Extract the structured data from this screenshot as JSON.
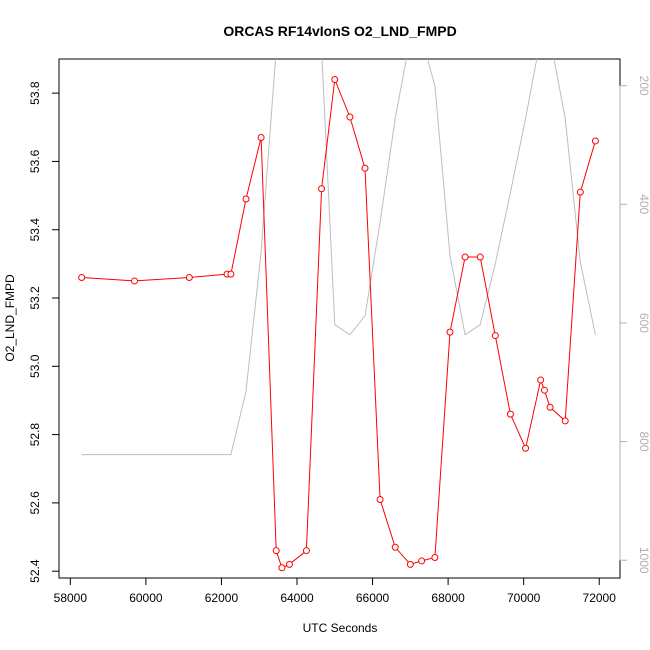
{
  "chart_data": {
    "type": "line",
    "title": "ORCAS RF14vIonS O2_LND_FMPD",
    "xlabel": "UTC Seconds",
    "ylabel": "O2_LND_FMPD",
    "xlim": [
      57700,
      72550
    ],
    "ylim": [
      52.38,
      53.9
    ],
    "x_ticks": [
      58000,
      60000,
      62000,
      64000,
      66000,
      68000,
      70000,
      72000
    ],
    "y_ticks": [
      52.4,
      52.6,
      52.8,
      53.0,
      53.2,
      53.4,
      53.6,
      53.8
    ],
    "y_tick_labels": [
      "52.4",
      "52.6",
      "52.8",
      "53.0",
      "53.2",
      "53.4",
      "53.6",
      "53.8"
    ],
    "y2_lim": [
      1030,
      155
    ],
    "y2_ticks": [
      200,
      400,
      600,
      800,
      1000
    ],
    "grid": false,
    "series": [
      {
        "color": "#ff0000",
        "style": "line+open-circles",
        "axis": "left",
        "x": [
          58300,
          59700,
          61150,
          62150,
          62250,
          62650,
          63050,
          63450,
          63600,
          63800,
          64250,
          64650,
          65000,
          65400,
          65800,
          66200,
          66600,
          67000,
          67300,
          67650,
          68050,
          68450,
          68850,
          69250,
          69650,
          70050,
          70450,
          70550,
          70700,
          71100,
          71500,
          71900
        ],
        "y": [
          53.26,
          53.25,
          53.26,
          53.27,
          53.27,
          53.49,
          53.67,
          52.46,
          52.41,
          52.42,
          52.46,
          53.52,
          53.84,
          53.73,
          53.58,
          52.61,
          52.47,
          52.42,
          52.43,
          52.44,
          53.1,
          53.32,
          53.32,
          53.09,
          52.86,
          52.76,
          52.96,
          52.93,
          52.88,
          52.84,
          53.51,
          53.66
        ]
      },
      {
        "color": "#bebebe",
        "style": "line",
        "axis": "right",
        "x": [
          58300,
          62250,
          62650,
          63050,
          63450,
          64650,
          65000,
          65400,
          65800,
          66200,
          66600,
          67000,
          67300,
          67650,
          68050,
          68450,
          68850,
          69250,
          69650,
          70050,
          70450,
          70700,
          71100,
          71500,
          71900
        ],
        "y": [
          822,
          822,
          715,
          480,
          140,
          140,
          603,
          620,
          588,
          430,
          255,
          120,
          120,
          200,
          487,
          620,
          603,
          500,
          380,
          255,
          120,
          120,
          255,
          497,
          620
        ]
      }
    ]
  }
}
